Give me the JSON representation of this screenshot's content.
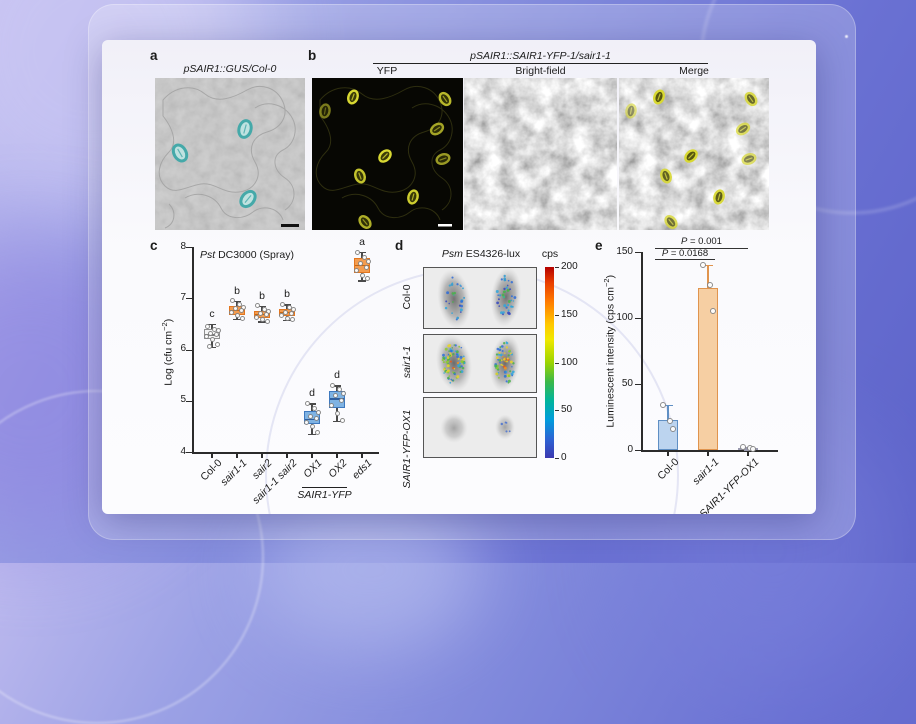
{
  "colors": {
    "orange_fill": "#F39C4F",
    "orange_border": "#E2761F",
    "blue_fill": "#7FB3E3",
    "blue_border": "#3E79BF",
    "gray_fill": "#F5F5F5",
    "gray_border": "#909090",
    "bar_blue_fill": "#BCD4EF",
    "bar_blue_border": "#5F8FC4",
    "bar_orange_fill": "#F6CFA3",
    "bar_orange_border": "#E0944E",
    "axis": "#2B2B2B"
  },
  "figure": {
    "panel_a": {
      "label": "a",
      "title": "pSAIR1::GUS/Col-0"
    },
    "panel_b": {
      "label": "b",
      "title": "pSAIR1::SAIR1-YFP-1/sair1-1",
      "sub_labels": [
        "YFP",
        "Bright-field",
        "Merge"
      ]
    },
    "panel_c": {
      "label": "c",
      "title_it": "Pst",
      "title_rest": " DC3000 (Spray)",
      "ylabel_pre": "Log (cfu cm",
      "ylabel_sup": "−2",
      "ylabel_post": ")",
      "bracket_label": "SAIR1-YFP"
    },
    "panel_d": {
      "label": "d",
      "title_it": "Psm",
      "title_rest": " ES4326-lux",
      "colorbar_label": "cps"
    },
    "panel_e": {
      "label": "e",
      "ylabel_pre": "Luminescent intensity (cps cm",
      "ylabel_sup": "−2",
      "ylabel_post": ")"
    }
  },
  "chart_data": [
    {
      "id": "panel_c",
      "type": "box",
      "title": "Pst DC3000 (Spray)",
      "ylabel": "Log (cfu cm-2)",
      "ylim": [
        4,
        8
      ],
      "yticks": [
        8,
        7,
        6,
        5,
        4
      ],
      "grid": false,
      "groups": [
        {
          "category": "Col-0",
          "italic": false,
          "letter": "c",
          "color": "gray",
          "whisker_low": 6.05,
          "q1": 6.2,
          "median": 6.3,
          "q3": 6.4,
          "whisker_high": 6.5,
          "points": [
            6.45,
            6.4,
            6.38,
            6.32,
            6.3,
            6.25,
            6.2,
            6.1,
            6.05
          ]
        },
        {
          "category": "sair1-1",
          "italic": true,
          "letter": "b",
          "color": "orange",
          "whisker_low": 6.6,
          "q1": 6.68,
          "median": 6.78,
          "q3": 6.85,
          "whisker_high": 6.95,
          "points": [
            6.95,
            6.88,
            6.82,
            6.8,
            6.76,
            6.72,
            6.66,
            6.6
          ]
        },
        {
          "category": "sair2",
          "italic": true,
          "letter": "b",
          "color": "orange",
          "whisker_low": 6.55,
          "q1": 6.62,
          "median": 6.7,
          "q3": 6.76,
          "whisker_high": 6.85,
          "points": [
            6.85,
            6.78,
            6.74,
            6.7,
            6.68,
            6.63,
            6.58,
            6.55
          ]
        },
        {
          "category": "sair1-1 sair2",
          "italic": true,
          "letter": "b",
          "color": "orange",
          "whisker_low": 6.58,
          "q1": 6.65,
          "median": 6.73,
          "q3": 6.8,
          "whisker_high": 6.88,
          "points": [
            6.88,
            6.82,
            6.78,
            6.73,
            6.7,
            6.66,
            6.6,
            6.58
          ]
        },
        {
          "category": "OX1",
          "italic": true,
          "letter": "d",
          "color": "blue",
          "whisker_low": 4.35,
          "q1": 4.55,
          "median": 4.65,
          "q3": 4.8,
          "whisker_high": 4.95,
          "points": [
            4.95,
            4.85,
            4.78,
            4.7,
            4.65,
            4.58,
            4.5,
            4.38
          ]
        },
        {
          "category": "OX2",
          "italic": true,
          "letter": "d",
          "color": "blue",
          "whisker_low": 4.6,
          "q1": 4.85,
          "median": 5.05,
          "q3": 5.2,
          "whisker_high": 5.3,
          "points": [
            5.3,
            5.22,
            5.15,
            5.1,
            5.0,
            4.9,
            4.75,
            4.62
          ]
        },
        {
          "category": "eds1",
          "italic": true,
          "letter": "a",
          "color": "orange",
          "whisker_low": 7.35,
          "q1": 7.5,
          "median": 7.65,
          "q3": 7.78,
          "whisker_high": 7.9,
          "points": [
            7.9,
            7.8,
            7.72,
            7.68,
            7.6,
            7.55,
            7.45,
            7.38
          ]
        }
      ],
      "group_annotation": {
        "label": "SAIR1-YFP",
        "from": "OX1",
        "to": "OX2"
      }
    },
    {
      "id": "panel_d",
      "type": "heatmap",
      "title": "Psm ES4326-lux",
      "colorbar_label": "cps",
      "colorbar_ticks": [
        200,
        150,
        100,
        50,
        0
      ],
      "rows": [
        {
          "label": "Col-0",
          "italic": false
        },
        {
          "label": "sair1-1",
          "italic": true
        },
        {
          "label": "SAIR1-YFP-OX1",
          "italic": true
        }
      ]
    },
    {
      "id": "panel_e",
      "type": "bar",
      "ylabel": "Luminescent intensity (cps cm-2)",
      "ylim": [
        0,
        150
      ],
      "yticks": [
        150,
        100,
        50,
        0
      ],
      "grid": false,
      "bars": [
        {
          "category": "Col-0",
          "italic": false,
          "value": 23,
          "error": 11,
          "palette": "blue",
          "points": [
            34,
            22,
            16
          ]
        },
        {
          "category": "sair1-1",
          "italic": true,
          "value": 123,
          "error": 17,
          "palette": "orange",
          "points": [
            140,
            125,
            105
          ]
        },
        {
          "category": "SAIR1-YFP-OX1",
          "italic": true,
          "value": 1.5,
          "error": 1,
          "palette": "gray",
          "points": [
            2,
            1.5,
            1
          ]
        }
      ],
      "significance": [
        {
          "label": "P = 0.001"
        },
        {
          "label": "P = 0.0168"
        }
      ]
    }
  ]
}
